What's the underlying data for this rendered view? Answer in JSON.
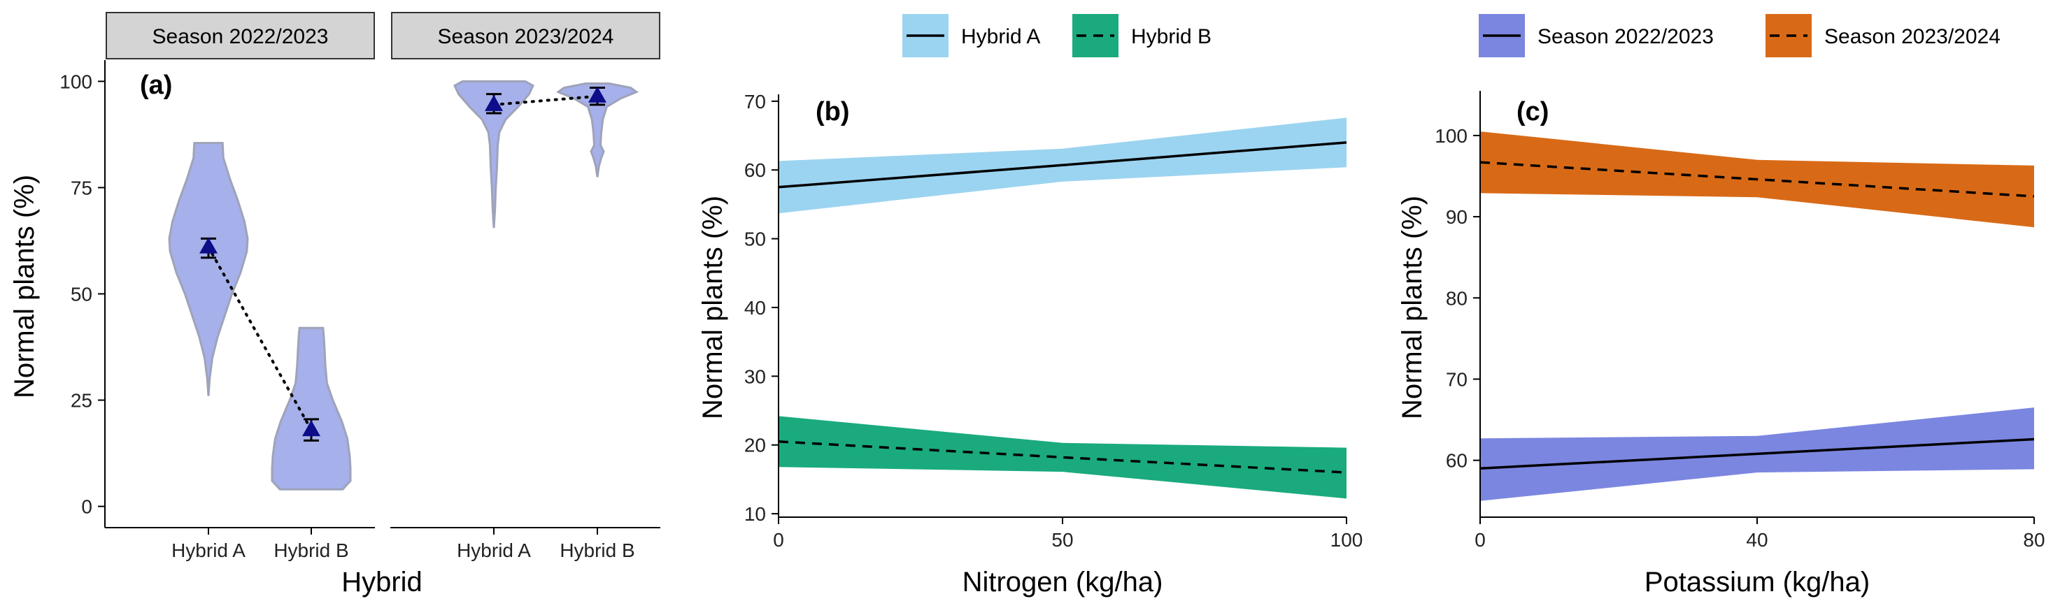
{
  "chart_data": [
    {
      "panel": "(a)",
      "type": "violin",
      "ylabel": "Normal plants (%)",
      "xlabel": "Hybrid",
      "ylim": [
        -5,
        105
      ],
      "yticks": [
        0,
        25,
        50,
        75,
        100
      ],
      "violin_fill": "#a6b0ea",
      "violin_stroke": "#9ea3b8",
      "point_color": "#0d0d8a",
      "facets": [
        {
          "strip": "Season 2022/2023",
          "categories": [
            "Hybrid A",
            "Hybrid B"
          ],
          "means": [
            61,
            18
          ],
          "errors": [
            [
              58.5,
              63
            ],
            [
              15.5,
              20.5
            ]
          ],
          "violins": [
            {
              "min": 26,
              "max": 85.5,
              "profile": [
                [
                  26,
                  0
                ],
                [
                  30,
                  0.03
                ],
                [
                  35,
                  0.1
                ],
                [
                  40,
                  0.24
                ],
                [
                  45,
                  0.42
                ],
                [
                  50,
                  0.6
                ],
                [
                  55,
                  0.82
                ],
                [
                  60,
                  0.98
                ],
                [
                  63,
                  1
                ],
                [
                  67,
                  0.92
                ],
                [
                  72,
                  0.75
                ],
                [
                  77,
                  0.55
                ],
                [
                  82,
                  0.38
                ],
                [
                  85.5,
                  0.36
                ]
              ]
            },
            {
              "min": 4,
              "max": 42,
              "profile": [
                [
                  4,
                  0.8
                ],
                [
                  6,
                  1
                ],
                [
                  9,
                  1
                ],
                [
                  12,
                  0.98
                ],
                [
                  16,
                  0.92
                ],
                [
                  20,
                  0.78
                ],
                [
                  25,
                  0.55
                ],
                [
                  29,
                  0.4
                ],
                [
                  33,
                  0.36
                ],
                [
                  37,
                  0.34
                ],
                [
                  40,
                  0.32
                ],
                [
                  42,
                  0.3
                ]
              ]
            }
          ]
        },
        {
          "strip": "Season 2023/2024",
          "categories": [
            "Hybrid A",
            "Hybrid B"
          ],
          "means": [
            94.5,
            96.5
          ],
          "errors": [
            [
              92.5,
              97
            ],
            [
              94.5,
              98.5
            ]
          ],
          "violins": [
            {
              "min": 65.5,
              "max": 100,
              "profile": [
                [
                  65.5,
                  0
                ],
                [
                  70,
                  0.03
                ],
                [
                  75,
                  0.05
                ],
                [
                  80,
                  0.08
                ],
                [
                  85,
                  0.1
                ],
                [
                  88,
                  0.14
                ],
                [
                  91,
                  0.3
                ],
                [
                  94,
                  0.62
                ],
                [
                  97,
                  0.9
                ],
                [
                  99,
                  1
                ],
                [
                  100,
                  0.8
                ]
              ]
            },
            {
              "min": 77.5,
              "max": 99.5,
              "profile": [
                [
                  77.5,
                  0
                ],
                [
                  80,
                  0.04
                ],
                [
                  82,
                  0.1
                ],
                [
                  83.5,
                  0.16
                ],
                [
                  85,
                  0.08
                ],
                [
                  88,
                  0.1
                ],
                [
                  91,
                  0.14
                ],
                [
                  94,
                  0.24
                ],
                [
                  96,
                  0.6
                ],
                [
                  97.5,
                  1
                ],
                [
                  98.5,
                  0.85
                ],
                [
                  99.5,
                  0.3
                ]
              ]
            }
          ]
        }
      ]
    },
    {
      "panel": "(b)",
      "type": "line",
      "xlabel": "Nitrogen (kg/ha)",
      "ylabel": "Normal plants (%)",
      "xlim": [
        0,
        100
      ],
      "ylim": [
        9.5,
        71
      ],
      "xticks": [
        0,
        50,
        100
      ],
      "yticks": [
        10,
        20,
        30,
        40,
        50,
        60,
        70
      ],
      "legend": [
        "Hybrid A",
        "Hybrid B"
      ],
      "series": [
        {
          "name": "Hybrid A",
          "style": "solid",
          "fill": "#9bd4f0",
          "x": [
            0,
            50,
            100
          ],
          "y": [
            57.5,
            60.7,
            64.0
          ],
          "lower": [
            53.7,
            58.3,
            60.4
          ],
          "upper": [
            61.3,
            63.1,
            67.6
          ]
        },
        {
          "name": "Hybrid B",
          "style": "dashed",
          "fill": "#1aaa7e",
          "x": [
            0,
            50,
            100
          ],
          "y": [
            20.5,
            18.2,
            16.0
          ],
          "lower": [
            16.8,
            16.1,
            12.2
          ],
          "upper": [
            24.2,
            20.3,
            19.6
          ]
        }
      ]
    },
    {
      "panel": "(c)",
      "type": "line",
      "xlabel": "Potassium (kg/ha)",
      "ylabel": "Normal plants (%)",
      "xlim": [
        0,
        80
      ],
      "ylim": [
        53,
        105.5
      ],
      "xticks": [
        0,
        40,
        80
      ],
      "yticks": [
        60,
        70,
        80,
        90,
        100
      ],
      "legend": [
        "Season 2022/2023",
        "Season 2023/2024"
      ],
      "series": [
        {
          "name": "Season 2022/2023",
          "style": "solid",
          "fill": "#7b86e0",
          "x": [
            0,
            40,
            80
          ],
          "y": [
            59.0,
            60.8,
            62.6
          ],
          "lower": [
            55.0,
            58.5,
            58.9
          ],
          "upper": [
            62.7,
            63.0,
            66.5
          ]
        },
        {
          "name": "Season 2023/2024",
          "style": "dashed",
          "fill": "#d86a17",
          "x": [
            0,
            40,
            80
          ],
          "y": [
            96.7,
            94.6,
            92.5
          ],
          "lower": [
            92.9,
            92.4,
            88.7
          ],
          "upper": [
            100.5,
            97.0,
            96.3
          ]
        }
      ]
    }
  ]
}
